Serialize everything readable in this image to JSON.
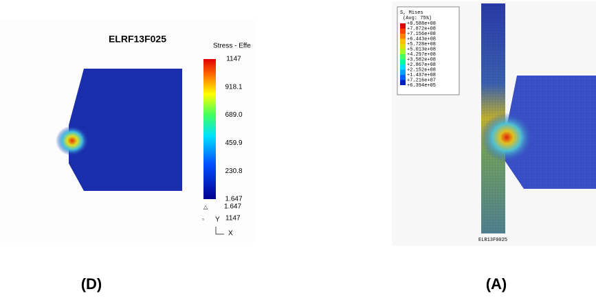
{
  "panel_d": {
    "title": "ELRF13F025",
    "legend_title": "Stress - Effe",
    "legend_labels": [
      "1147",
      "918.1",
      "689.0",
      "459.9",
      "230.8",
      "1.647"
    ],
    "min_label": "1.647",
    "max_label": "1147",
    "axis_y": "Y",
    "axis_x": "X",
    "caption": "(D)"
  },
  "panel_a": {
    "legend_title": "S, Mises",
    "legend_subtitle": "(Avg: 75%)",
    "legend_labels": [
      "+8.588e+08",
      "+7.872e+08",
      "+7.156e+08",
      "+6.443e+08",
      "+5.728e+08",
      "+5.013e+08",
      "+4.297e+08",
      "+3.582e+08",
      "+2.867e+08",
      "+2.152e+08",
      "+1.437e+08",
      "+7.216e+07",
      "+6.394e+05"
    ],
    "model_label": "ELR13F0025",
    "caption": "(A)"
  }
}
